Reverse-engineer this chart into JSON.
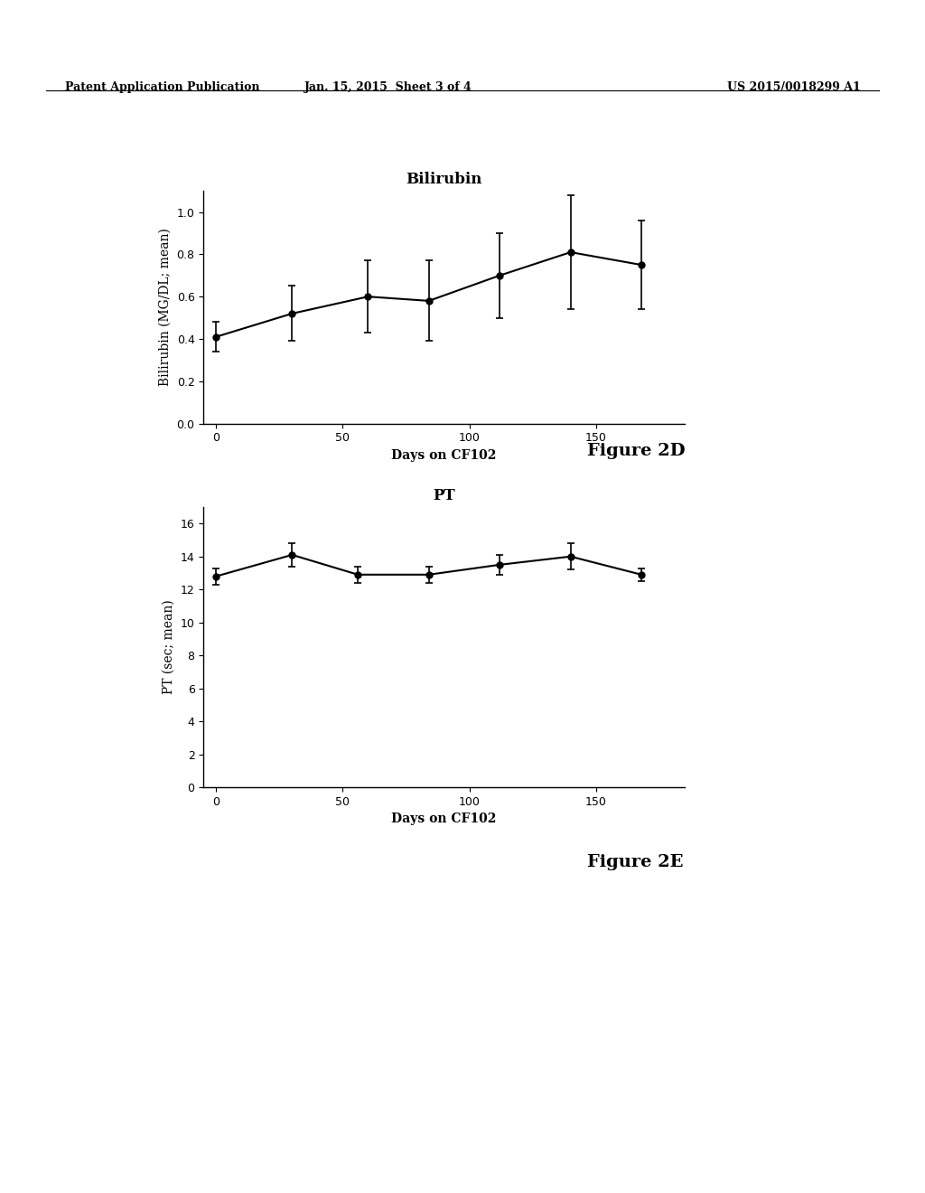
{
  "fig2d": {
    "title": "Bilirubin",
    "xlabel": "Days on CF102",
    "ylabel": "Bilirubin (MG/DL; mean)",
    "x": [
      0,
      30,
      60,
      84,
      112,
      140,
      168
    ],
    "y": [
      0.41,
      0.52,
      0.6,
      0.58,
      0.7,
      0.81,
      0.75
    ],
    "yerr_low": [
      0.07,
      0.13,
      0.17,
      0.19,
      0.2,
      0.27,
      0.21
    ],
    "yerr_high": [
      0.07,
      0.13,
      0.17,
      0.19,
      0.2,
      0.27,
      0.21
    ],
    "ylim": [
      0,
      1.1
    ],
    "yticks": [
      0,
      0.2,
      0.4,
      0.6,
      0.8,
      1.0
    ],
    "xlim": [
      -5,
      185
    ],
    "xticks": [
      0,
      50,
      100,
      150
    ],
    "figure_label": "Figure 2D"
  },
  "fig2e": {
    "title": "PT",
    "xlabel": "Days on CF102",
    "ylabel": "PT (sec; mean)",
    "x": [
      0,
      30,
      56,
      84,
      112,
      140,
      168
    ],
    "y": [
      12.8,
      14.1,
      12.9,
      12.9,
      13.5,
      14.0,
      12.9
    ],
    "yerr_low": [
      0.5,
      0.7,
      0.5,
      0.5,
      0.6,
      0.8,
      0.4
    ],
    "yerr_high": [
      0.5,
      0.7,
      0.5,
      0.5,
      0.6,
      0.8,
      0.4
    ],
    "ylim": [
      0,
      17
    ],
    "yticks": [
      0,
      2,
      4,
      6,
      8,
      10,
      12,
      14,
      16
    ],
    "xlim": [
      -5,
      185
    ],
    "xticks": [
      0,
      50,
      100,
      150
    ],
    "figure_label": "Figure 2E"
  },
  "header_left": "Patent Application Publication",
  "header_center": "Jan. 15, 2015  Sheet 3 of 4",
  "header_right": "US 2015/0018299 A1",
  "bg_color": "#ffffff",
  "line_color": "#000000",
  "marker_color": "#000000",
  "marker_size": 5,
  "linewidth": 1.5,
  "capsize": 3,
  "elinewidth": 1.2,
  "title_fontsize": 12,
  "label_fontsize": 10,
  "tick_fontsize": 9,
  "figure_label_fontsize": 14
}
